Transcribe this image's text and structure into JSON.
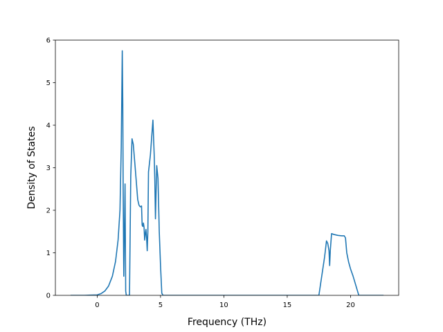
{
  "chart_data": {
    "type": "line",
    "title": "",
    "xlabel": "Frequency (THz)",
    "ylabel": "Density of States",
    "xlim": [
      -3.3,
      23.8
    ],
    "ylim": [
      0,
      6
    ],
    "xticks": [
      0,
      5,
      10,
      15,
      20
    ],
    "yticks": [
      0,
      1,
      2,
      3,
      4,
      5,
      6
    ],
    "grid": false,
    "legend": "none",
    "line_color": "#1f77b4",
    "series": [
      {
        "x": [
          -2.1,
          -1.0,
          0.0,
          0.3,
          0.6,
          0.9,
          1.2,
          1.45,
          1.65,
          1.8,
          1.9,
          1.98,
          2.02,
          2.05,
          2.1,
          2.15,
          2.2,
          2.25,
          2.3,
          2.4,
          2.5,
          2.55,
          2.65,
          2.75,
          2.85,
          3.0,
          3.2,
          3.3,
          3.4,
          3.5,
          3.55,
          3.6,
          3.65,
          3.7,
          3.75,
          3.8,
          3.85,
          3.9,
          3.95,
          4.0,
          4.05,
          4.2,
          4.4,
          4.5,
          4.55,
          4.6,
          4.7,
          4.8,
          4.9,
          5.0,
          5.1,
          5.2,
          5.3,
          5.4,
          6.0,
          10.0,
          15.0,
          17.5,
          17.6,
          17.8,
          17.95,
          18.1,
          18.2,
          18.3,
          18.35,
          18.4,
          18.5,
          18.7,
          19.0,
          19.3,
          19.5,
          19.6,
          19.7,
          19.85,
          20.0,
          20.2,
          20.4,
          20.6,
          20.65,
          20.7,
          22.6
        ],
        "y": [
          0,
          0,
          0.01,
          0.04,
          0.1,
          0.22,
          0.45,
          0.8,
          1.3,
          2.0,
          3.5,
          5.75,
          4.5,
          2.5,
          0.45,
          1.5,
          2.62,
          0.1,
          0,
          0,
          0,
          0,
          2.8,
          3.68,
          3.55,
          3.0,
          2.25,
          2.12,
          2.08,
          2.1,
          1.65,
          1.62,
          1.7,
          1.6,
          1.3,
          1.45,
          1.55,
          1.35,
          1.05,
          1.5,
          2.9,
          3.3,
          4.12,
          3.3,
          2.7,
          1.8,
          3.05,
          2.75,
          1.5,
          0.7,
          0.05,
          0,
          0,
          0,
          0,
          0,
          0,
          0,
          0.2,
          0.6,
          0.9,
          1.28,
          1.22,
          1.05,
          0.7,
          1.05,
          1.45,
          1.43,
          1.41,
          1.4,
          1.4,
          1.35,
          1.0,
          0.78,
          0.62,
          0.45,
          0.25,
          0.05,
          0,
          0,
          0
        ]
      }
    ]
  }
}
